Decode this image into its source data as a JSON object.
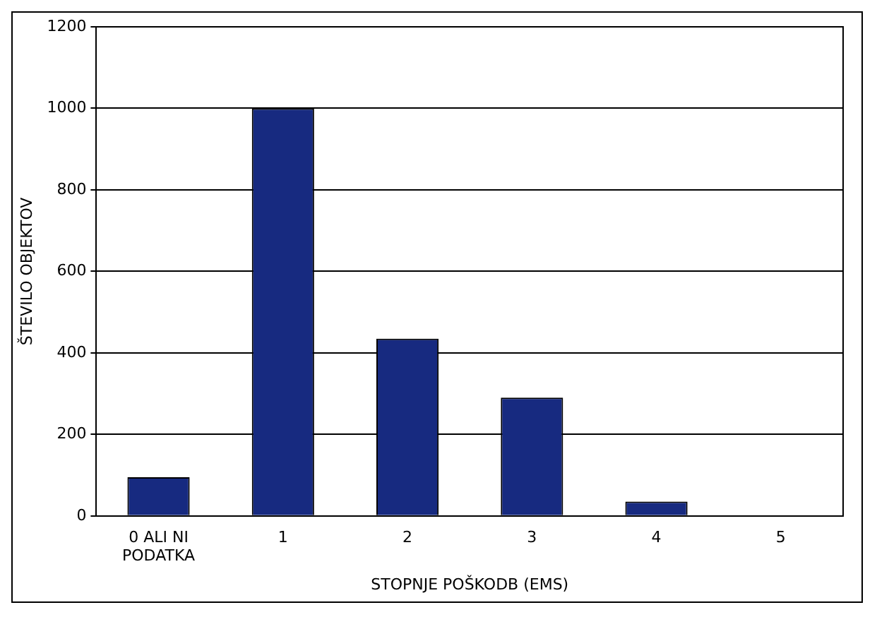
{
  "chart_data": {
    "type": "bar",
    "xlabel": "STOPNJE POŠKODB (EMS)",
    "ylabel": "ŠTEVILO OBJEKTOV",
    "categories": [
      "0 ALI NI PODATKA",
      "1",
      "2",
      "3",
      "4",
      "5"
    ],
    "values": [
      95,
      1000,
      435,
      290,
      35,
      0
    ],
    "color": "#172a80",
    "ylim": [
      0,
      1200
    ],
    "yticks": [
      0,
      200,
      400,
      600,
      800,
      1000,
      1200
    ],
    "grid": "y",
    "legend": false
  }
}
